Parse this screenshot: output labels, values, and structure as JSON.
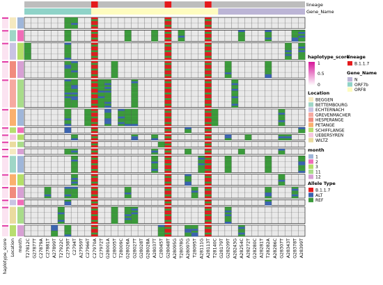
{
  "chart_data": {
    "type": "heatmap",
    "title": "",
    "colors": {
      "REF": "#3a9a3a",
      "ALT": "#3a63b0",
      "B117": "#e41a1c",
      "lineage_na": "#bdbdbd",
      "gene_N": "#bcb5d6",
      "gene_ORF7b": "#8fd3c8",
      "gene_ORF8": "#fefcbf",
      "cell_bg": "#e9e9e9",
      "cell_border": "#555555"
    },
    "columns": [
      "T27812C",
      "G27877T",
      "C27879A",
      "C27881T",
      "A27899T",
      "T27922C",
      "C27938T",
      "C2794T",
      "A27959T",
      "C27966T",
      "C27970A",
      "C27972T",
      "G28001A",
      "C28005T",
      "T28009C",
      "G28026A",
      "G28027T",
      "G28028T",
      "G28028A",
      "A28037T",
      "C28045T",
      "G28048T",
      "A28095G",
      "T28078G",
      "A28097G",
      "T28095T",
      "A28111G",
      "A28113T",
      "T28140C",
      "G28179T",
      "G28209T",
      "A28243G",
      "A28254C",
      "A28272T",
      "G28280C",
      "A28281T",
      "T28282A",
      "A28286C",
      "G28307T",
      "A28343T",
      "G28378T",
      "A28399T"
    ],
    "row_groups": [
      {
        "rows": 2,
        "location": "BEGGEN",
        "month": "1"
      },
      {
        "rows": 2,
        "location": "BETTEMBOURG",
        "month": "2"
      },
      {
        "rows": 3,
        "location": "ECHTERNACH",
        "month": "3"
      },
      {
        "rows": 3,
        "location": "HESPERANGE",
        "month": "12"
      },
      {
        "rows": 5,
        "location": "GREVENMACHER",
        "month": "11"
      },
      {
        "rows": 3,
        "location": "PETANGE",
        "month": "1"
      },
      {
        "rows": 1,
        "location": "SCHIFFLANGE",
        "month": "2"
      },
      {
        "rows": 1,
        "location": "UEBERSYREN",
        "month": "3"
      },
      {
        "rows": 1,
        "location": "WILTZ",
        "month": "11"
      },
      {
        "rows": 1,
        "location": "BEGGEN",
        "month": "12"
      },
      {
        "rows": 3,
        "location": "BETTEMBOURG",
        "month": "1"
      },
      {
        "rows": 2,
        "location": "PETANGE",
        "month": "3"
      },
      {
        "rows": 2,
        "location": "HESPERANGE",
        "month": "12"
      },
      {
        "rows": 1,
        "location": "ECHTERNACH",
        "month": "2"
      },
      {
        "rows": 3,
        "location": "WILTZ",
        "month": "11"
      },
      {
        "rows": 2,
        "location": "SCHIFFLANGE",
        "month": "12"
      }
    ],
    "top_annotations": {
      "lineage_title": "lineage",
      "gene_title": "Gene_Name"
    },
    "left_annotation_labels": [
      "haplotype_score",
      "Location",
      "month"
    ],
    "legends": {
      "haplotype_score": {
        "title": "haplotype_score",
        "ticks": [
          "1",
          "0.5",
          "0"
        ]
      },
      "lineage": {
        "title": "lineage",
        "items": [
          {
            "label": "B.1.1.7",
            "color": "#e41a1c"
          }
        ]
      },
      "gene": {
        "title": "Gene_Name",
        "items": [
          {
            "label": "N",
            "color": "#bcb5d6"
          },
          {
            "label": "ORF7b",
            "color": "#8fd3c8"
          },
          {
            "label": "ORF8",
            "color": "#fefcbf"
          }
        ]
      },
      "location": {
        "title": "Location",
        "items": [
          {
            "label": "BEGGEN",
            "color": "#f5e9c0"
          },
          {
            "label": "BETTEMBOURG",
            "color": "#9fd6c6"
          },
          {
            "label": "ECHTERNACH",
            "color": "#c9c3e3"
          },
          {
            "label": "GREVENMACHER",
            "color": "#f6a9a0"
          },
          {
            "label": "HESPERANGE",
            "color": "#f18b7d"
          },
          {
            "label": "PETANGE",
            "color": "#fab06e"
          },
          {
            "label": "SCHIFFLANGE",
            "color": "#b8de6f"
          },
          {
            "label": "UEBERSYREN",
            "color": "#f5c6e0"
          },
          {
            "label": "WILTZ",
            "color": "#eadb9f"
          }
        ]
      },
      "month": {
        "title": "month",
        "items": [
          {
            "label": "1",
            "color": "#9fb6d9"
          },
          {
            "label": "2",
            "color": "#f06cb8"
          },
          {
            "label": "3",
            "color": "#b3de68"
          },
          {
            "label": "11",
            "color": "#a8dc8a"
          },
          {
            "label": "12",
            "color": "#d7a0d4"
          }
        ]
      },
      "allele": {
        "title": "Allele Type",
        "items": [
          {
            "label": "B.1.1.7",
            "color": "#e41a1c"
          },
          {
            "label": "ALT",
            "color": "#3a63b0"
          },
          {
            "label": "REF",
            "color": "#3a9a3a"
          }
        ]
      }
    }
  }
}
